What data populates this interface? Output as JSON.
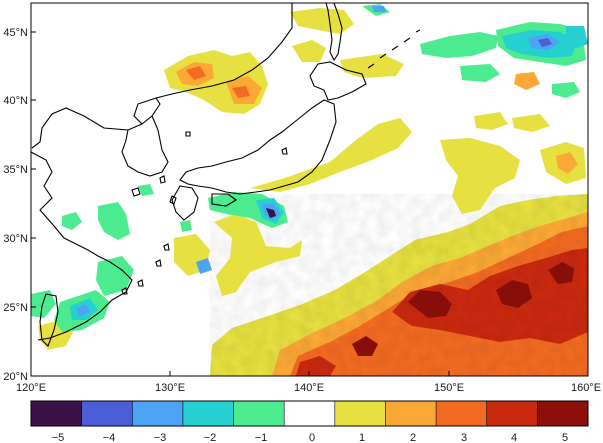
{
  "map": {
    "lon_labels": [
      "120°E",
      "130°E",
      "140°E",
      "150°E",
      "160°E"
    ],
    "lat_labels": [
      "45°N",
      "40°N",
      "35°N",
      "30°N",
      "25°N",
      "20°N"
    ],
    "extent": {
      "lon": [
        120,
        160
      ],
      "lat": [
        20,
        47
      ]
    }
  },
  "colorbar": {
    "tick_labels": [
      "−5",
      "−4",
      "−3",
      "−2",
      "−1",
      "0",
      "1",
      "2",
      "3",
      "4",
      "5"
    ],
    "colors": [
      "#3b1246",
      "#4b5ed6",
      "#4da3f5",
      "#26cfd0",
      "#4deb8f",
      "#ffffff",
      "#e6e040",
      "#fba836",
      "#f36b22",
      "#c9290f",
      "#8c0f0b"
    ]
  },
  "palette": {
    "coastline": "#000000",
    "frame": "#000000"
  }
}
